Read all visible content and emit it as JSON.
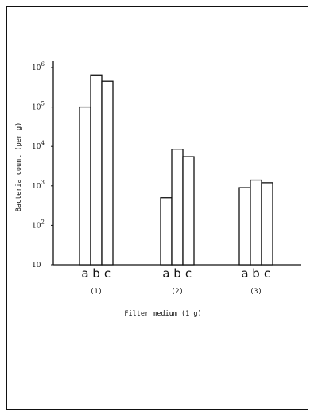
{
  "chart_data": {
    "type": "bar",
    "ylabel": "Bacteria count (per g)",
    "xlabel": "Filter medium (1 g)",
    "yscale": "log",
    "ylim": [
      10,
      1000000
    ],
    "yticks": [
      {
        "value": 10,
        "base": "10",
        "exp": ""
      },
      {
        "value": 100,
        "base": "10",
        "exp": "2"
      },
      {
        "value": 1000,
        "base": "10",
        "exp": "3"
      },
      {
        "value": 10000,
        "base": "10",
        "exp": "4"
      },
      {
        "value": 100000,
        "base": "10",
        "exp": "5"
      },
      {
        "value": 1000000,
        "base": "10",
        "exp": "6"
      }
    ],
    "groups": [
      {
        "label": "(1)",
        "bars": [
          {
            "letter": "a",
            "value": 100000
          },
          {
            "letter": "b",
            "value": 650000
          },
          {
            "letter": "c",
            "value": 450000
          }
        ]
      },
      {
        "label": "(2)",
        "bars": [
          {
            "letter": "a",
            "value": 500
          },
          {
            "letter": "b",
            "value": 8500
          },
          {
            "letter": "c",
            "value": 5500
          }
        ]
      },
      {
        "label": "(3)",
        "bars": [
          {
            "letter": "a",
            "value": 900
          },
          {
            "letter": "b",
            "value": 1400
          },
          {
            "letter": "c",
            "value": 1200
          }
        ]
      }
    ],
    "grid": false,
    "legend": "none"
  }
}
